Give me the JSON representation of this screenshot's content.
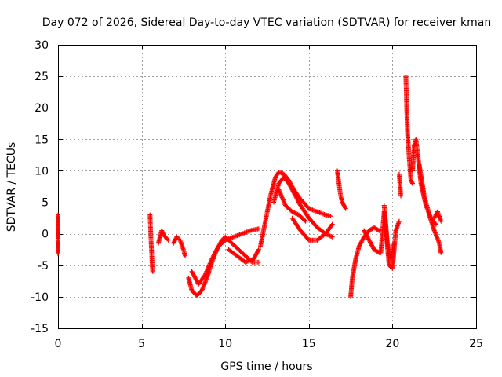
{
  "chart_data": {
    "type": "scatter",
    "title": "Day 072 of 2026, Sidereal Day-to-day VTEC variation (SDTVAR) for receiver kman",
    "xlabel": "GPS time / hours",
    "ylabel": "SDTVAR / TECUs",
    "xlim": [
      0,
      25
    ],
    "ylim": [
      -15,
      30
    ],
    "xticks": [
      0,
      5,
      10,
      15,
      20,
      25
    ],
    "yticks": [
      -15,
      -10,
      -5,
      0,
      5,
      10,
      15,
      20,
      25,
      30
    ],
    "xtick_labels": [
      "0",
      "5",
      "10",
      "15",
      "20",
      "25"
    ],
    "ytick_labels": [
      "-15",
      "-10",
      "-5",
      "0",
      "5",
      "10",
      "15",
      "20",
      "25",
      "30"
    ],
    "grid": true,
    "marker": "+",
    "color": "#ff0000",
    "series": [
      {
        "name": "t0",
        "x": [
          0.0,
          0.0,
          0.0,
          0.0,
          0.0,
          0.0,
          0.0
        ],
        "y": [
          3.0,
          1.5,
          -0.7,
          -1.0,
          -3.0,
          -3.2,
          2.8
        ]
      },
      {
        "name": "s1",
        "x": [
          5.5,
          5.53,
          5.56,
          5.6,
          5.63,
          5.66
        ],
        "y": [
          3.0,
          1.0,
          -1.0,
          -3.0,
          -5.0,
          -6.0
        ]
      },
      {
        "name": "s2",
        "x": [
          6.0,
          6.2,
          6.4,
          6.6
        ],
        "y": [
          -1.5,
          0.5,
          -0.5,
          -1.0
        ]
      },
      {
        "name": "s3",
        "x": [
          6.9,
          7.1,
          7.3,
          7.5,
          7.6
        ],
        "y": [
          -1.5,
          -0.5,
          -1.0,
          -2.5,
          -3.5
        ]
      },
      {
        "name": "s4",
        "x": [
          7.8,
          8.0,
          8.3,
          8.6,
          8.9,
          9.2,
          9.5,
          9.8,
          10.0,
          10.4,
          10.8,
          11.2,
          11.6,
          12.0
        ],
        "y": [
          -7.0,
          -9.0,
          -9.8,
          -9.0,
          -7.0,
          -4.5,
          -2.5,
          -1.0,
          -0.5,
          -1.5,
          -2.5,
          -3.5,
          -4.5,
          -4.5
        ]
      },
      {
        "name": "s5",
        "x": [
          8.0,
          8.4,
          8.8,
          9.2,
          9.6,
          10.0,
          10.5,
          11.0,
          11.5,
          12.0
        ],
        "y": [
          -6.0,
          -8.0,
          -6.5,
          -4.0,
          -2.0,
          -1.0,
          -0.5,
          0.0,
          0.5,
          0.8
        ]
      },
      {
        "name": "s6",
        "x": [
          10.2,
          10.7,
          11.2,
          11.7,
          12.0
        ],
        "y": [
          -2.5,
          -3.5,
          -4.5,
          -4.0,
          -2.5
        ]
      },
      {
        "name": "s7",
        "x": [
          12.1,
          12.4,
          12.7,
          13.0,
          13.2,
          13.5,
          13.8,
          14.1,
          14.5,
          15.0,
          15.5,
          16.0,
          16.3
        ],
        "y": [
          -2.0,
          2.0,
          6.0,
          9.0,
          9.8,
          9.5,
          8.5,
          7.0,
          5.5,
          4.0,
          3.5,
          3.0,
          2.8
        ]
      },
      {
        "name": "s8",
        "x": [
          12.9,
          13.2,
          13.5,
          13.8,
          14.1,
          14.5,
          15.0,
          15.5,
          16.0,
          16.4
        ],
        "y": [
          5.0,
          8.0,
          9.0,
          8.0,
          6.5,
          4.5,
          2.5,
          1.0,
          0.0,
          -0.5
        ]
      },
      {
        "name": "s9",
        "x": [
          14.0,
          14.5,
          15.0,
          15.5,
          16.0,
          16.4
        ],
        "y": [
          2.5,
          0.5,
          -1.0,
          -1.0,
          0.0,
          1.5
        ]
      },
      {
        "name": "s10",
        "x": [
          13.2,
          13.6,
          14.0,
          14.4,
          14.8
        ],
        "y": [
          7.0,
          4.5,
          3.5,
          3.0,
          2.0
        ]
      },
      {
        "name": "s11",
        "x": [
          16.7,
          16.8,
          16.9,
          17.0,
          17.2
        ],
        "y": [
          10.0,
          8.0,
          6.0,
          5.0,
          4.0
        ]
      },
      {
        "name": "s12",
        "x": [
          17.5,
          17.6,
          17.8,
          18.0,
          18.3,
          18.6,
          18.9,
          19.2
        ],
        "y": [
          -10.0,
          -7.0,
          -4.0,
          -2.0,
          -0.5,
          0.5,
          1.0,
          0.5
        ]
      },
      {
        "name": "s13",
        "x": [
          18.3,
          18.6,
          18.9,
          19.2
        ],
        "y": [
          0.5,
          -1.0,
          -2.5,
          -3.0
        ]
      },
      {
        "name": "s14",
        "x": [
          19.3,
          19.5,
          19.8,
          20.0,
          20.2,
          20.4
        ],
        "y": [
          -3.0,
          3.5,
          -5.0,
          -5.5,
          0.5,
          2.0
        ]
      },
      {
        "name": "s15",
        "x": [
          19.5,
          19.7,
          19.9,
          20.1
        ],
        "y": [
          4.5,
          -1.5,
          -4.0,
          -1.5
        ]
      },
      {
        "name": "s16",
        "x": [
          20.4,
          20.5
        ],
        "y": [
          9.5,
          6.0
        ]
      },
      {
        "name": "s17",
        "x": [
          20.8,
          20.85,
          20.9,
          21.0,
          21.1,
          21.2
        ],
        "y": [
          25.0,
          20.0,
          16.0,
          12.0,
          8.5,
          8.0
        ]
      },
      {
        "name": "s18",
        "x": [
          21.2,
          21.3,
          21.4,
          21.5,
          21.7,
          22.0,
          22.3,
          22.6
        ],
        "y": [
          10.0,
          14.0,
          15.0,
          13.0,
          8.0,
          4.5,
          2.5,
          1.5
        ]
      },
      {
        "name": "s19",
        "x": [
          21.6,
          21.9,
          22.2,
          22.5,
          22.8,
          22.9
        ],
        "y": [
          11.0,
          6.0,
          3.0,
          0.5,
          -1.5,
          -3.0
        ]
      },
      {
        "name": "s20",
        "x": [
          22.5,
          22.7,
          22.9
        ],
        "y": [
          2.5,
          3.5,
          2.0
        ]
      }
    ]
  }
}
